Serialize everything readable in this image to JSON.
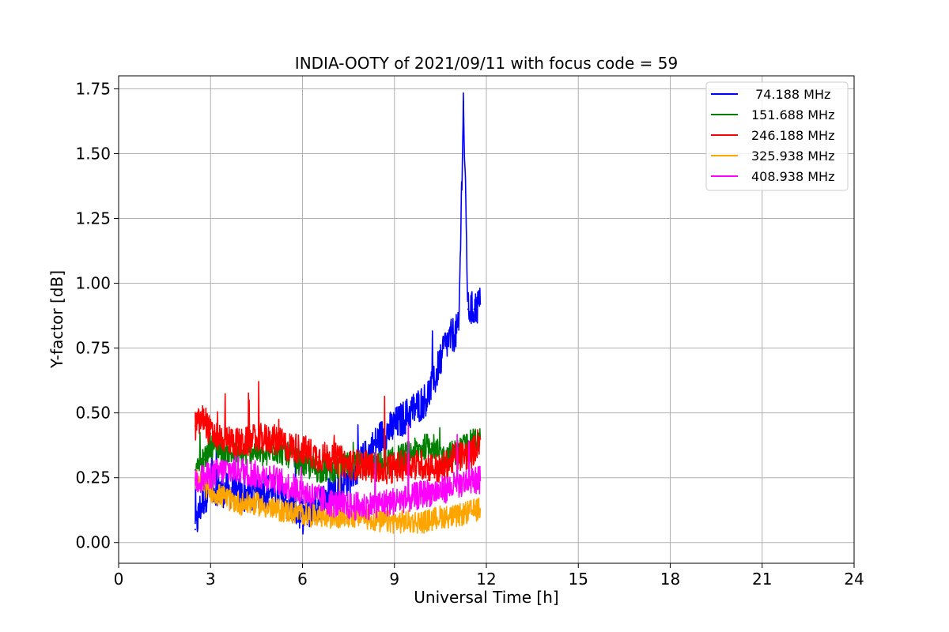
{
  "chart_data": {
    "type": "line",
    "title": "INDIA-OOTY of 2021/09/11 with focus code = 59",
    "xlabel": "Universal Time [h]",
    "ylabel": "Y-factor [dB]",
    "xlim": [
      0,
      24
    ],
    "ylim": [
      -0.08,
      1.8
    ],
    "xticks": [
      0,
      3,
      6,
      9,
      12,
      15,
      18,
      21,
      24
    ],
    "yticks": [
      0.0,
      0.25,
      0.5,
      0.75,
      1.0,
      1.25,
      1.5,
      1.75
    ],
    "xtick_labels": [
      "0",
      "3",
      "6",
      "9",
      "12",
      "15",
      "18",
      "21",
      "24"
    ],
    "ytick_labels": [
      "0.00",
      "0.25",
      "0.50",
      "0.75",
      "1.00",
      "1.25",
      "1.50",
      "1.75"
    ],
    "grid": true,
    "legend_position": "top-right",
    "series": [
      {
        "name": " 74.188 MHz",
        "color": "#0000ff",
        "x": [
          2.5,
          2.7,
          3.0,
          3.5,
          4.0,
          4.5,
          5.0,
          5.5,
          6.0,
          6.5,
          7.0,
          7.5,
          8.0,
          8.5,
          9.0,
          9.5,
          10.0,
          10.3,
          10.6,
          10.9,
          11.1,
          11.25,
          11.4,
          11.6,
          11.8
        ],
        "y": [
          0.05,
          0.15,
          0.22,
          0.2,
          0.18,
          0.2,
          0.2,
          0.15,
          0.1,
          0.15,
          0.2,
          0.25,
          0.32,
          0.4,
          0.45,
          0.5,
          0.55,
          0.62,
          0.75,
          0.8,
          0.82,
          1.7,
          0.9,
          0.9,
          0.92
        ]
      },
      {
        "name": "151.688 MHz",
        "color": "#008000",
        "x": [
          2.5,
          2.8,
          3.0,
          3.5,
          4.0,
          4.4,
          4.8,
          5.0,
          5.5,
          6.0,
          6.5,
          7.0,
          7.5,
          8.0,
          8.5,
          9.0,
          9.4,
          9.8,
          10.2,
          10.6,
          11.0,
          11.4,
          11.8
        ],
        "y": [
          0.28,
          0.32,
          0.38,
          0.35,
          0.33,
          0.36,
          0.33,
          0.36,
          0.34,
          0.3,
          0.28,
          0.28,
          0.3,
          0.3,
          0.3,
          0.32,
          0.34,
          0.36,
          0.38,
          0.33,
          0.35,
          0.38,
          0.4
        ]
      },
      {
        "name": "246.188 MHz",
        "color": "#ff0000",
        "x": [
          2.5,
          2.8,
          3.0,
          3.5,
          4.0,
          4.5,
          5.0,
          5.5,
          6.0,
          6.5,
          7.0,
          7.5,
          8.0,
          8.5,
          9.0,
          9.5,
          10.0,
          10.5,
          11.0,
          11.5,
          11.8
        ],
        "y": [
          0.45,
          0.48,
          0.42,
          0.4,
          0.38,
          0.4,
          0.4,
          0.37,
          0.36,
          0.33,
          0.33,
          0.3,
          0.3,
          0.28,
          0.29,
          0.3,
          0.3,
          0.28,
          0.33,
          0.34,
          0.4
        ]
      },
      {
        "name": "325.938 MHz",
        "color": "#ffa500",
        "x": [
          2.5,
          3.0,
          3.5,
          4.0,
          4.5,
          5.0,
          5.5,
          6.0,
          6.5,
          7.0,
          7.5,
          8.0,
          8.5,
          9.0,
          9.5,
          10.0,
          10.5,
          11.0,
          11.5,
          11.8
        ],
        "y": [
          0.25,
          0.2,
          0.17,
          0.15,
          0.15,
          0.13,
          0.12,
          0.11,
          0.1,
          0.1,
          0.1,
          0.1,
          0.08,
          0.08,
          0.08,
          0.08,
          0.1,
          0.1,
          0.12,
          0.13
        ]
      },
      {
        "name": "408.938 MHz",
        "color": "#ff00ff",
        "x": [
          2.5,
          3.0,
          3.5,
          4.0,
          4.5,
          5.0,
          5.5,
          6.0,
          6.5,
          7.0,
          7.5,
          8.0,
          8.5,
          9.0,
          9.5,
          10.0,
          10.5,
          11.0,
          11.5,
          11.8
        ],
        "y": [
          0.24,
          0.26,
          0.28,
          0.28,
          0.26,
          0.25,
          0.22,
          0.2,
          0.17,
          0.15,
          0.14,
          0.14,
          0.15,
          0.16,
          0.17,
          0.19,
          0.2,
          0.22,
          0.24,
          0.24
        ]
      }
    ]
  }
}
